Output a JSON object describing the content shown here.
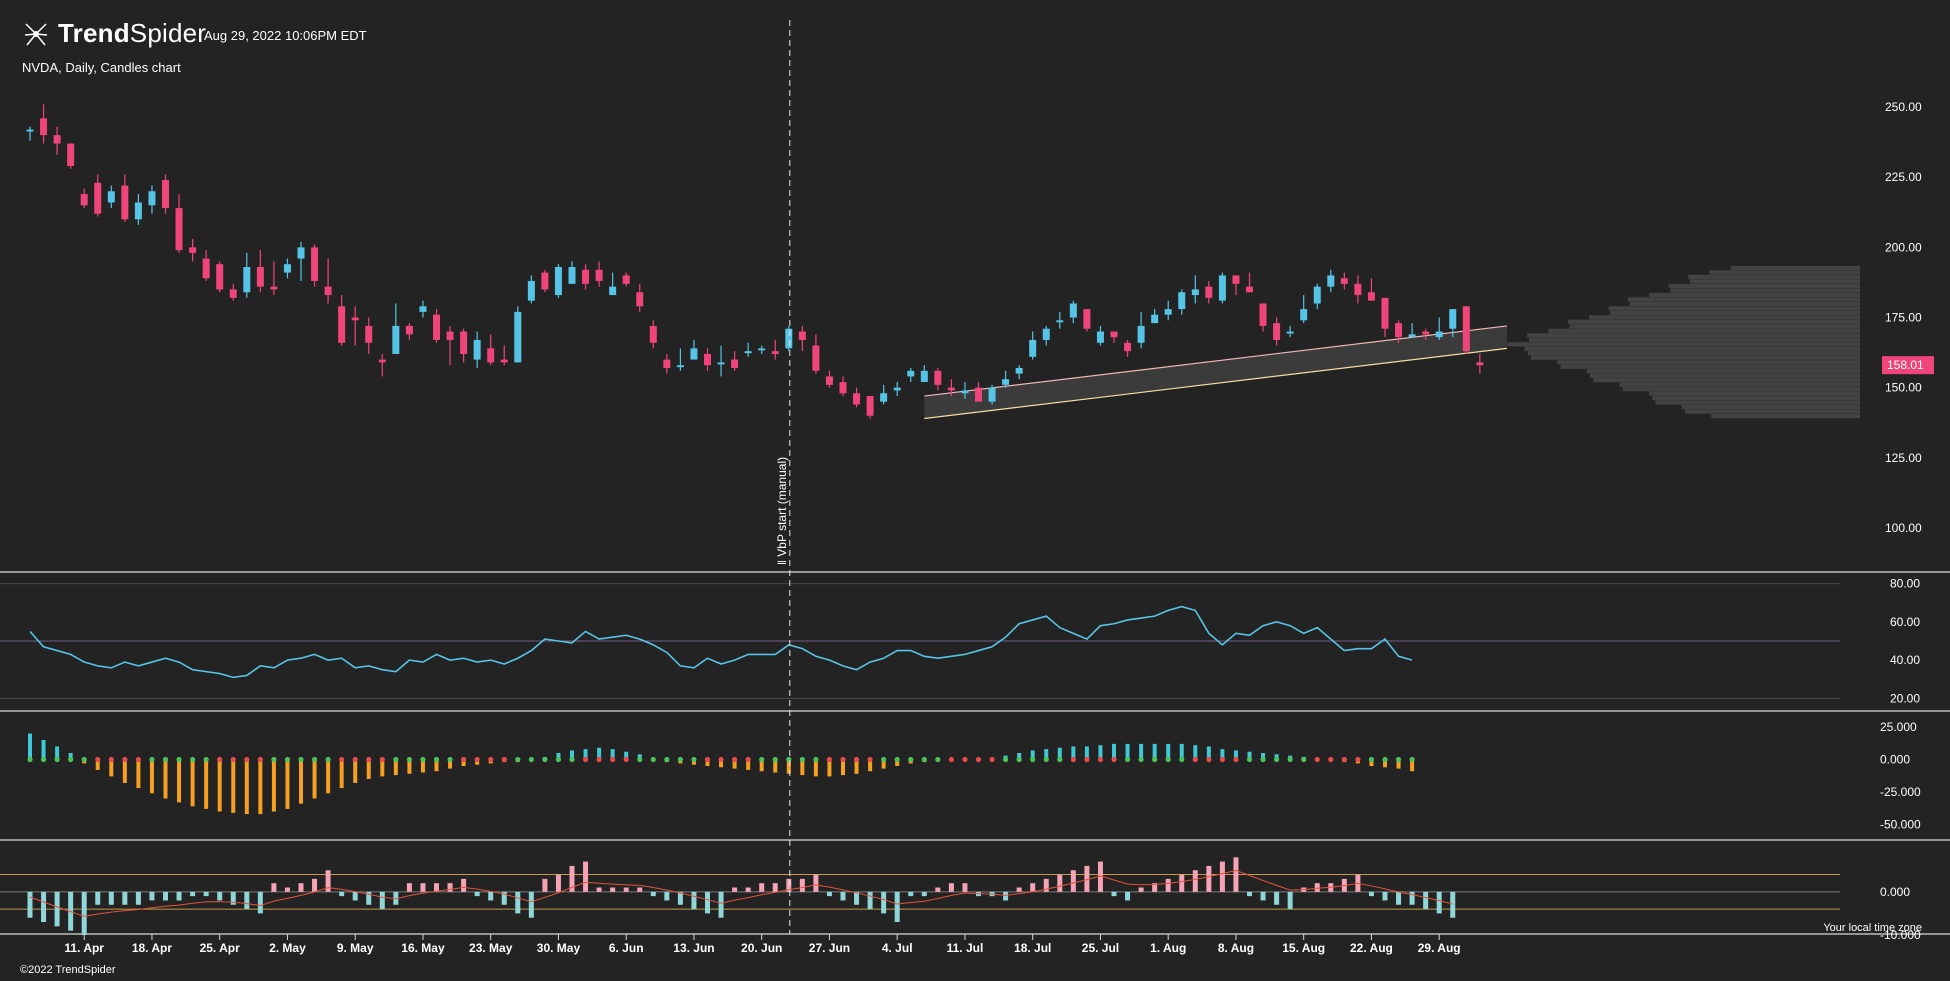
{
  "header": {
    "brand_prefix": "Trend",
    "brand_suffix": "Spider",
    "timestamp": "Aug 29, 2022 10:06PM EDT",
    "symbol_line": "NVDA, Daily, Candles chart"
  },
  "footer": {
    "copyright": "©2022 TrendSpider",
    "timezone_note": "Your local time zone"
  },
  "colors": {
    "background": "#232323",
    "up": "#56c4e6",
    "down": "#f0457a",
    "rsi_line": "#56c4e6",
    "squeeze_up": "#3fc8d6",
    "squeeze_down": "#f5a020",
    "channel_upper": "#f0b8b8",
    "channel_lower": "#f3dfa0",
    "vbp_bars": "#474747",
    "last_price_badge": "#f0457a"
  },
  "annotation": {
    "vbp_start_label": "‖ VbP start (manual)"
  },
  "chart_data": {
    "type": "candlestick",
    "symbol": "NVDA",
    "interval": "Daily",
    "x_tick_labels": [
      "11. Apr",
      "18. Apr",
      "25. Apr",
      "2. May",
      "9. May",
      "16. May",
      "23. May",
      "30. May",
      "6. Jun",
      "13. Jun",
      "20. Jun",
      "27. Jun",
      "4. Jul",
      "11. Jul",
      "18. Jul",
      "25. Jul",
      "1. Aug",
      "8. Aug",
      "15. Aug",
      "22. Aug",
      "29. Aug"
    ],
    "price_axis": {
      "ticks": [
        "250.00",
        "225.00",
        "200.00",
        "175.00",
        "150.00",
        "125.00",
        "100.00"
      ],
      "range": [
        85,
        265
      ]
    },
    "last_price": "158.01",
    "candles": [
      [
        242,
        242,
        243,
        238
      ],
      [
        246,
        240,
        251,
        237
      ],
      [
        240,
        237,
        243,
        233
      ],
      [
        237,
        229,
        237,
        228
      ],
      [
        219,
        215,
        221,
        214
      ],
      [
        223,
        212,
        226,
        211
      ],
      [
        216,
        220,
        222,
        214
      ],
      [
        222,
        210,
        226,
        209
      ],
      [
        210,
        216,
        219,
        208
      ],
      [
        215,
        220,
        222,
        212
      ],
      [
        224,
        214,
        226,
        212
      ],
      [
        214,
        199,
        219,
        198
      ],
      [
        200,
        198,
        203,
        195
      ],
      [
        196,
        189,
        199,
        188
      ],
      [
        194,
        185,
        195,
        184
      ],
      [
        185,
        182,
        187,
        181
      ],
      [
        184,
        193,
        198,
        182
      ],
      [
        193,
        186,
        199,
        184
      ],
      [
        186,
        185,
        195,
        183
      ],
      [
        191,
        194,
        196,
        189
      ],
      [
        196,
        200,
        202,
        188
      ],
      [
        200,
        188,
        201,
        186
      ],
      [
        186,
        183,
        196,
        180
      ],
      [
        179,
        166,
        183,
        165
      ],
      [
        175,
        174,
        179,
        165
      ],
      [
        172,
        166,
        175,
        162
      ],
      [
        160,
        159,
        162,
        154
      ],
      [
        162,
        172,
        180,
        162
      ],
      [
        172,
        169,
        173,
        167
      ],
      [
        177,
        179,
        181,
        175
      ],
      [
        176,
        167,
        178,
        166
      ],
      [
        170,
        167,
        172,
        158
      ],
      [
        170,
        162,
        171,
        159
      ],
      [
        160,
        167,
        170,
        157
      ],
      [
        164,
        159,
        169,
        158
      ],
      [
        160,
        159,
        165,
        158
      ],
      [
        159,
        177,
        179,
        159
      ],
      [
        181,
        188,
        190,
        180
      ],
      [
        191,
        185,
        192,
        184
      ],
      [
        183,
        193,
        194,
        182
      ],
      [
        187,
        193,
        195,
        188
      ],
      [
        192,
        187,
        194,
        185
      ],
      [
        192,
        188,
        195,
        186
      ],
      [
        183,
        186,
        191,
        183
      ],
      [
        190,
        187,
        191,
        186
      ],
      [
        184,
        179,
        187,
        177
      ],
      [
        172,
        166,
        174,
        164
      ],
      [
        160,
        157,
        162,
        155
      ],
      [
        158,
        158,
        164,
        156
      ],
      [
        160,
        164,
        167,
        160
      ],
      [
        162,
        158,
        164,
        156
      ],
      [
        159,
        159,
        165,
        154
      ],
      [
        160,
        157,
        163,
        156
      ],
      [
        163,
        163,
        166,
        161
      ],
      [
        164,
        164,
        165,
        162
      ],
      [
        163,
        162,
        167,
        160
      ],
      [
        164,
        171,
        172,
        163
      ],
      [
        170,
        167,
        172,
        163
      ],
      [
        165,
        156,
        169,
        155
      ],
      [
        154,
        151,
        156,
        150
      ],
      [
        152,
        148,
        154,
        147
      ],
      [
        148,
        144,
        150,
        143
      ],
      [
        147,
        140,
        147,
        139
      ],
      [
        145,
        148,
        151,
        144
      ],
      [
        149,
        150,
        152,
        147
      ],
      [
        154,
        156,
        157,
        152
      ],
      [
        152,
        156,
        158,
        153
      ],
      [
        156,
        151,
        157,
        149
      ],
      [
        150,
        149,
        153,
        147
      ],
      [
        148,
        149,
        152,
        146
      ],
      [
        150,
        145,
        152,
        145
      ],
      [
        145,
        150,
        151,
        144
      ],
      [
        151,
        153,
        156,
        150
      ],
      [
        155,
        157,
        158,
        153
      ],
      [
        161,
        167,
        170,
        160
      ],
      [
        167,
        171,
        172,
        165
      ],
      [
        174,
        174,
        177,
        171
      ],
      [
        175,
        180,
        181,
        173
      ],
      [
        178,
        171,
        178,
        170
      ],
      [
        166,
        170,
        172,
        165
      ],
      [
        170,
        168,
        170,
        166
      ],
      [
        166,
        163,
        167,
        161
      ],
      [
        166,
        172,
        177,
        164
      ],
      [
        173,
        176,
        178,
        173
      ],
      [
        176,
        178,
        181,
        174
      ],
      [
        178,
        184,
        185,
        176
      ],
      [
        183,
        185,
        190,
        180
      ],
      [
        186,
        182,
        188,
        180
      ],
      [
        181,
        190,
        191,
        180
      ],
      [
        190,
        187,
        190,
        183
      ],
      [
        186,
        184,
        191,
        184
      ],
      [
        180,
        172,
        180,
        170
      ],
      [
        173,
        167,
        175,
        165
      ],
      [
        170,
        170,
        172,
        168
      ],
      [
        174,
        178,
        183,
        173
      ],
      [
        180,
        186,
        187,
        178
      ],
      [
        186,
        190,
        192,
        184
      ],
      [
        189,
        187,
        191,
        185
      ],
      [
        187,
        183,
        190,
        180
      ],
      [
        184,
        181,
        189,
        181
      ],
      [
        182,
        171,
        182,
        168
      ],
      [
        173,
        168,
        174,
        166
      ],
      [
        168,
        169,
        173,
        168
      ],
      [
        170,
        169,
        171,
        167
      ],
      [
        168,
        170,
        175,
        167
      ],
      [
        171,
        178,
        178,
        168
      ],
      [
        179,
        163,
        179,
        162
      ],
      [
        159,
        158,
        162,
        155
      ]
    ],
    "rsi": {
      "axis_ticks": [
        "80.00",
        "60.00",
        "40.00",
        "20.00"
      ],
      "range": [
        15,
        85
      ],
      "levels": [
        80,
        50,
        20
      ],
      "values": [
        55,
        47,
        45,
        43,
        39,
        37,
        36,
        39,
        37,
        39,
        41,
        39,
        35,
        34,
        33,
        31,
        32,
        37,
        36,
        40,
        41,
        43,
        40,
        41,
        36,
        37,
        35,
        34,
        40,
        39,
        43,
        40,
        41,
        39,
        40,
        38,
        41,
        45,
        51,
        50,
        49,
        55,
        51,
        52,
        53,
        51,
        48,
        44,
        37,
        36,
        41,
        38,
        40,
        43,
        43,
        43,
        48,
        46,
        42,
        40,
        37,
        35,
        39,
        41,
        45,
        45,
        42,
        41,
        42,
        43,
        45,
        47,
        52,
        59,
        61,
        63,
        57,
        54,
        51,
        58,
        59,
        61,
        62,
        63,
        66,
        68,
        66,
        54,
        48,
        54,
        53,
        58,
        60,
        58,
        54,
        57,
        51,
        45,
        46,
        46,
        51,
        42,
        40
      ]
    },
    "squeeze_histogram": {
      "axis_ticks": [
        "25.000",
        "0.000",
        "-25.000",
        "-50.000"
      ],
      "range": [
        -65,
        35
      ],
      "values": [
        20,
        15,
        10,
        5,
        -3,
        -8,
        -13,
        -18,
        -22,
        -26,
        -30,
        -33,
        -36,
        -38,
        -40,
        -41,
        -42,
        -42,
        -40,
        -38,
        -34,
        -30,
        -26,
        -22,
        -18,
        -15,
        -13,
        -12,
        -11,
        -10,
        -9,
        -7,
        -5,
        -4,
        -3,
        -2,
        -2,
        -1,
        2,
        5,
        7,
        8,
        9,
        8,
        6,
        4,
        -1,
        -2,
        -3,
        -4,
        -5,
        -6,
        -7,
        -8,
        -9,
        -10,
        -11,
        -12,
        -13,
        -13,
        -12,
        -11,
        -9,
        -7,
        -5,
        -3,
        -2,
        -1,
        -1,
        -1,
        -1,
        1,
        3,
        5,
        7,
        8,
        9,
        10,
        10,
        11,
        12,
        12,
        12,
        12,
        12,
        12,
        11,
        10,
        8,
        7,
        6,
        5,
        4,
        3,
        2,
        1,
        -1,
        -2,
        -3,
        -5,
        -6,
        -7,
        -9
      ]
    },
    "oscillator": {
      "axis_ticks": [
        "0.000",
        "-10.000"
      ],
      "range": [
        -10,
        12
      ],
      "values": [
        -6,
        -7,
        -8,
        -9,
        -10,
        -3,
        -3,
        -3,
        -3,
        -2,
        -2,
        -2,
        -1,
        -1,
        -2,
        -3,
        -4,
        -5,
        2,
        1,
        2,
        3,
        5,
        -1,
        -2,
        -3,
        -4,
        -3,
        2,
        2,
        2,
        2,
        3,
        -1,
        -2,
        -3,
        -5,
        -6,
        3,
        4,
        6,
        7,
        1,
        1,
        1,
        1,
        -1,
        -2,
        -3,
        -4,
        -5,
        -6,
        1,
        1,
        2,
        2,
        3,
        3,
        4,
        -1,
        -2,
        -3,
        -4,
        -5,
        -7,
        -1,
        -1,
        1,
        2,
        2,
        -1,
        -1,
        -2,
        1,
        2,
        3,
        4,
        5,
        6,
        7,
        -1,
        -2,
        1,
        2,
        3,
        4,
        5,
        6,
        7,
        8,
        -1,
        -2,
        -3,
        -4,
        1,
        2,
        2,
        3,
        4,
        -1,
        -2,
        -3,
        -3,
        -4,
        -5,
        -6
      ]
    }
  }
}
